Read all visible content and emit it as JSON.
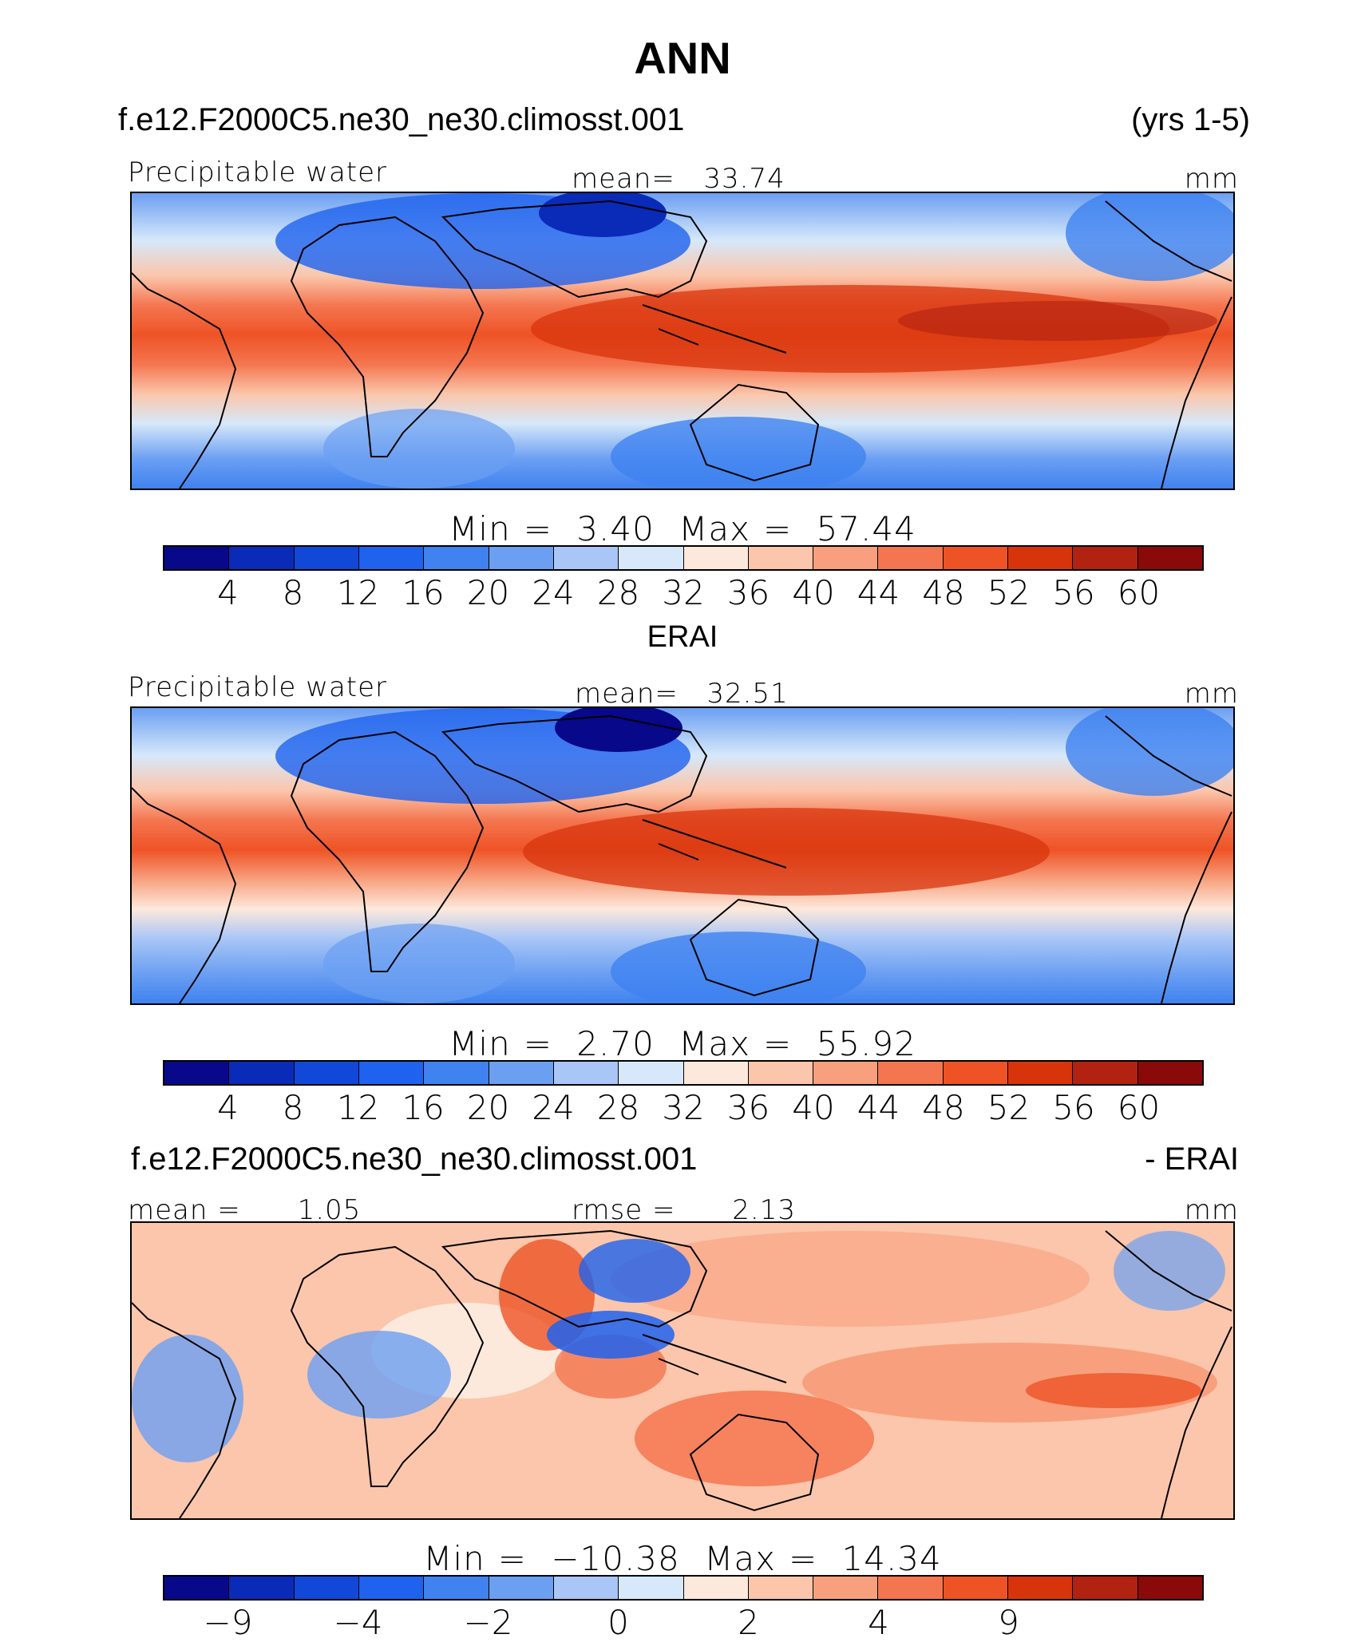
{
  "page": {
    "title": "ANN"
  },
  "colorbar": {
    "colors": [
      "#08088a",
      "#0a2ab8",
      "#1248d8",
      "#1e62ee",
      "#3f82f0",
      "#6b9ff2",
      "#a9c6f6",
      "#d6e8fa",
      "#fde9dc",
      "#fbc6ab",
      "#f8a07e",
      "#f47650",
      "#ee5326",
      "#d8340c",
      "#b22210",
      "#8a0a0a"
    ]
  },
  "panels": [
    {
      "case_label": "f.e12.F2000C5.ne30_ne30.climosst.001",
      "right_label": "(yrs 1-5)",
      "variable": "Precipitable water",
      "stat_left": "",
      "stat_center_label": "mean=",
      "stat_center_value": "33.74",
      "units": "mm",
      "min_label": "Min",
      "eq": "=",
      "min_value": "3.40",
      "max_label": "Max",
      "max_value": "57.44",
      "tick_labels": [
        "4",
        "8",
        "12",
        "16",
        "20",
        "24",
        "28",
        "32",
        "36",
        "40",
        "44",
        "48",
        "52",
        "56",
        "60"
      ]
    },
    {
      "case_label": "ERAI",
      "right_label": "",
      "variable": "Precipitable water",
      "stat_left": "",
      "stat_center_label": "mean=",
      "stat_center_value": "32.51",
      "units": "mm",
      "min_label": "Min",
      "eq": "=",
      "min_value": "2.70",
      "max_label": "Max",
      "max_value": "55.92",
      "tick_labels": [
        "4",
        "8",
        "12",
        "16",
        "20",
        "24",
        "28",
        "32",
        "36",
        "40",
        "44",
        "48",
        "52",
        "56",
        "60"
      ]
    },
    {
      "case_label": "f.e12.F2000C5.ne30_ne30.climosst.001",
      "right_label": "- ERAI",
      "variable": "",
      "stat_left_label": "mean =",
      "stat_left_value": "1.05",
      "stat_center_label": "rmse =",
      "stat_center_value": "2.13",
      "units": "mm",
      "min_label": "Min",
      "eq": "=",
      "min_value": "−10.38",
      "max_label": "Max",
      "max_value": "14.34",
      "tick_labels": [
        "−9",
        "",
        "−4",
        "",
        "−2",
        "",
        "0",
        "",
        "2",
        "",
        "4",
        "",
        "9"
      ]
    }
  ]
}
